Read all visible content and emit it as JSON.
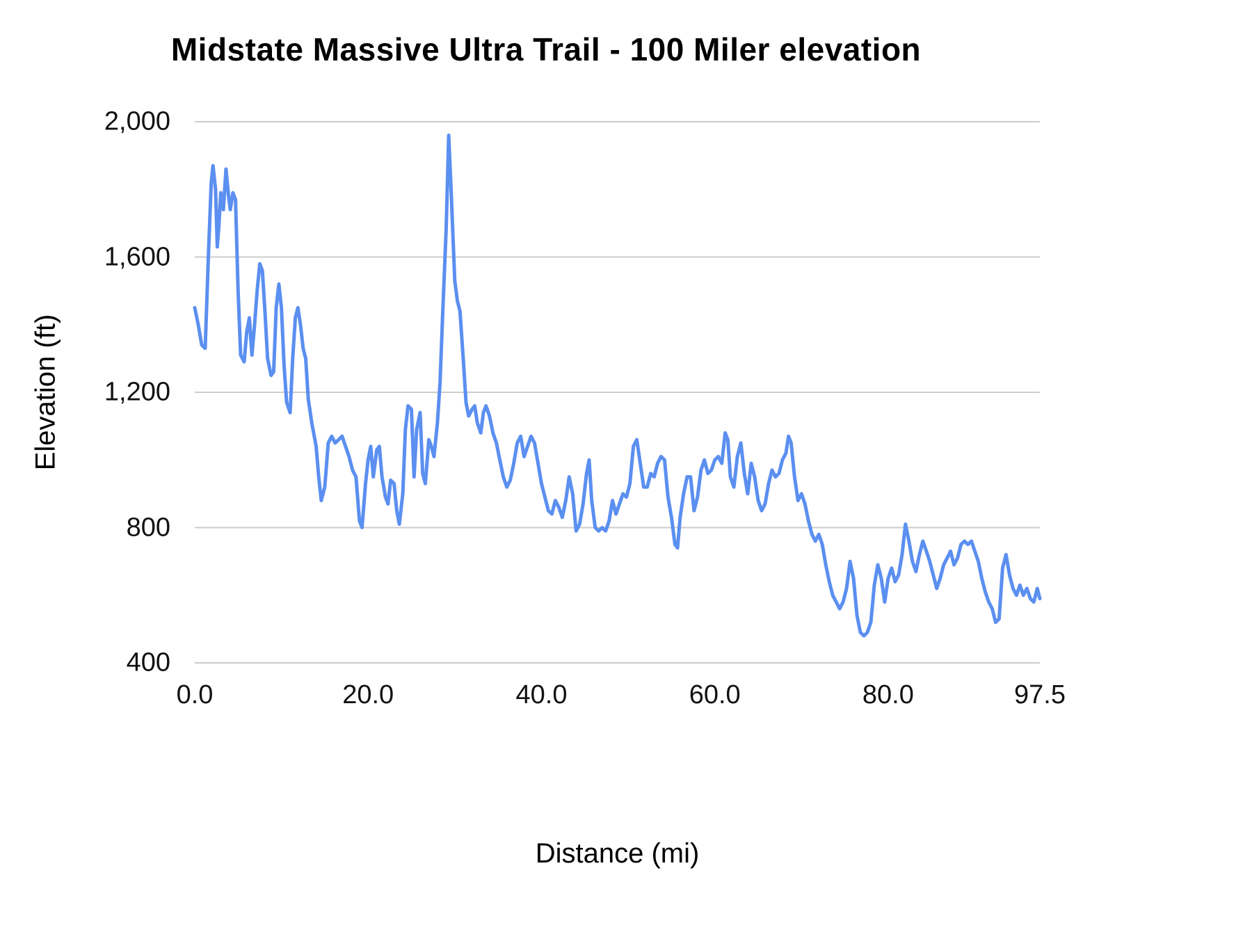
{
  "chart_data": {
    "type": "line",
    "title": "Midstate Massive Ultra Trail - 100 Miler elevation",
    "xlabel": "Distance (mi)",
    "ylabel": "Elevation (ft)",
    "xlim": [
      0,
      97.5
    ],
    "ylim": [
      400,
      2000
    ],
    "grid": "horizontal",
    "legend": "none",
    "line_color": "#5b8ff0",
    "gridline_color": "#cccccc",
    "text_color": "#111111",
    "x_ticks": [
      {
        "value": 0,
        "label": "0.0"
      },
      {
        "value": 20,
        "label": "20.0"
      },
      {
        "value": 40,
        "label": "40.0"
      },
      {
        "value": 60,
        "label": "60.0"
      },
      {
        "value": 80,
        "label": "80.0"
      },
      {
        "value": 97.5,
        "label": "97.5"
      }
    ],
    "y_ticks": [
      {
        "value": 2000,
        "label": "2,000"
      },
      {
        "value": 1600,
        "label": "1,600"
      },
      {
        "value": 1200,
        "label": "1,200"
      },
      {
        "value": 800,
        "label": "800"
      },
      {
        "value": 400,
        "label": "400"
      }
    ],
    "series_name": "elevation",
    "points": [
      [
        0,
        1450
      ],
      [
        0.4,
        1400
      ],
      [
        0.8,
        1340
      ],
      [
        1.2,
        1330
      ],
      [
        1.6,
        1620
      ],
      [
        1.9,
        1820
      ],
      [
        2.1,
        1870
      ],
      [
        2.4,
        1800
      ],
      [
        2.6,
        1630
      ],
      [
        2.8,
        1700
      ],
      [
        3.0,
        1790
      ],
      [
        3.3,
        1740
      ],
      [
        3.6,
        1860
      ],
      [
        3.9,
        1780
      ],
      [
        4.1,
        1740
      ],
      [
        4.4,
        1790
      ],
      [
        4.7,
        1770
      ],
      [
        5.0,
        1500
      ],
      [
        5.3,
        1310
      ],
      [
        5.7,
        1290
      ],
      [
        6.0,
        1380
      ],
      [
        6.3,
        1420
      ],
      [
        6.6,
        1310
      ],
      [
        6.9,
        1400
      ],
      [
        7.2,
        1500
      ],
      [
        7.5,
        1580
      ],
      [
        7.8,
        1560
      ],
      [
        8.1,
        1440
      ],
      [
        8.4,
        1300
      ],
      [
        8.8,
        1250
      ],
      [
        9.1,
        1260
      ],
      [
        9.4,
        1450
      ],
      [
        9.7,
        1520
      ],
      [
        10.0,
        1450
      ],
      [
        10.3,
        1280
      ],
      [
        10.6,
        1170
      ],
      [
        11.0,
        1140
      ],
      [
        11.3,
        1300
      ],
      [
        11.6,
        1420
      ],
      [
        11.9,
        1450
      ],
      [
        12.2,
        1400
      ],
      [
        12.5,
        1330
      ],
      [
        12.8,
        1300
      ],
      [
        13.1,
        1180
      ],
      [
        13.5,
        1110
      ],
      [
        14.0,
        1040
      ],
      [
        14.3,
        950
      ],
      [
        14.6,
        880
      ],
      [
        15.0,
        920
      ],
      [
        15.4,
        1050
      ],
      [
        15.8,
        1070
      ],
      [
        16.2,
        1050
      ],
      [
        16.6,
        1060
      ],
      [
        17.0,
        1070
      ],
      [
        17.4,
        1040
      ],
      [
        17.8,
        1010
      ],
      [
        18.2,
        970
      ],
      [
        18.6,
        950
      ],
      [
        19.0,
        820
      ],
      [
        19.3,
        800
      ],
      [
        19.7,
        930
      ],
      [
        20.0,
        1000
      ],
      [
        20.3,
        1040
      ],
      [
        20.6,
        950
      ],
      [
        21.0,
        1030
      ],
      [
        21.3,
        1040
      ],
      [
        21.6,
        950
      ],
      [
        22.0,
        890
      ],
      [
        22.3,
        870
      ],
      [
        22.6,
        940
      ],
      [
        23.0,
        930
      ],
      [
        23.3,
        850
      ],
      [
        23.6,
        810
      ],
      [
        24.0,
        900
      ],
      [
        24.3,
        1090
      ],
      [
        24.6,
        1160
      ],
      [
        25.0,
        1150
      ],
      [
        25.3,
        950
      ],
      [
        25.6,
        1090
      ],
      [
        26.0,
        1140
      ],
      [
        26.3,
        960
      ],
      [
        26.6,
        930
      ],
      [
        27.0,
        1060
      ],
      [
        27.3,
        1040
      ],
      [
        27.6,
        1010
      ],
      [
        28.0,
        1110
      ],
      [
        28.3,
        1230
      ],
      [
        28.6,
        1430
      ],
      [
        29.0,
        1680
      ],
      [
        29.3,
        1960
      ],
      [
        29.6,
        1780
      ],
      [
        30.0,
        1530
      ],
      [
        30.3,
        1470
      ],
      [
        30.6,
        1440
      ],
      [
        31.0,
        1290
      ],
      [
        31.3,
        1170
      ],
      [
        31.6,
        1130
      ],
      [
        32.0,
        1150
      ],
      [
        32.3,
        1160
      ],
      [
        32.6,
        1110
      ],
      [
        33.0,
        1080
      ],
      [
        33.3,
        1140
      ],
      [
        33.6,
        1160
      ],
      [
        34.0,
        1130
      ],
      [
        34.4,
        1080
      ],
      [
        34.8,
        1050
      ],
      [
        35.2,
        1000
      ],
      [
        35.6,
        950
      ],
      [
        36.0,
        920
      ],
      [
        36.4,
        940
      ],
      [
        36.8,
        990
      ],
      [
        37.2,
        1050
      ],
      [
        37.6,
        1070
      ],
      [
        38.0,
        1010
      ],
      [
        38.4,
        1040
      ],
      [
        38.8,
        1070
      ],
      [
        39.2,
        1050
      ],
      [
        39.6,
        990
      ],
      [
        40.0,
        930
      ],
      [
        40.4,
        890
      ],
      [
        40.8,
        850
      ],
      [
        41.2,
        840
      ],
      [
        41.6,
        880
      ],
      [
        42.0,
        860
      ],
      [
        42.4,
        830
      ],
      [
        42.8,
        880
      ],
      [
        43.2,
        950
      ],
      [
        43.6,
        900
      ],
      [
        44.0,
        790
      ],
      [
        44.4,
        810
      ],
      [
        44.8,
        870
      ],
      [
        45.2,
        960
      ],
      [
        45.5,
        1000
      ],
      [
        45.8,
        880
      ],
      [
        46.2,
        800
      ],
      [
        46.6,
        790
      ],
      [
        47.0,
        800
      ],
      [
        47.4,
        790
      ],
      [
        47.8,
        820
      ],
      [
        48.2,
        880
      ],
      [
        48.6,
        840
      ],
      [
        49.0,
        870
      ],
      [
        49.4,
        900
      ],
      [
        49.8,
        890
      ],
      [
        50.2,
        930
      ],
      [
        50.6,
        1040
      ],
      [
        51.0,
        1060
      ],
      [
        51.4,
        990
      ],
      [
        51.8,
        920
      ],
      [
        52.2,
        920
      ],
      [
        52.6,
        960
      ],
      [
        53.0,
        950
      ],
      [
        53.4,
        990
      ],
      [
        53.8,
        1010
      ],
      [
        54.2,
        1000
      ],
      [
        54.6,
        890
      ],
      [
        55.0,
        830
      ],
      [
        55.4,
        750
      ],
      [
        55.7,
        740
      ],
      [
        56.0,
        830
      ],
      [
        56.4,
        900
      ],
      [
        56.8,
        950
      ],
      [
        57.2,
        950
      ],
      [
        57.6,
        850
      ],
      [
        58.0,
        890
      ],
      [
        58.4,
        970
      ],
      [
        58.8,
        1000
      ],
      [
        59.2,
        960
      ],
      [
        59.6,
        970
      ],
      [
        60.0,
        1000
      ],
      [
        60.4,
        1010
      ],
      [
        60.8,
        990
      ],
      [
        61.2,
        1080
      ],
      [
        61.5,
        1060
      ],
      [
        61.8,
        950
      ],
      [
        62.2,
        920
      ],
      [
        62.6,
        1010
      ],
      [
        63.0,
        1050
      ],
      [
        63.4,
        960
      ],
      [
        63.8,
        900
      ],
      [
        64.2,
        990
      ],
      [
        64.6,
        950
      ],
      [
        65.0,
        880
      ],
      [
        65.4,
        850
      ],
      [
        65.8,
        870
      ],
      [
        66.2,
        930
      ],
      [
        66.6,
        970
      ],
      [
        67.0,
        950
      ],
      [
        67.4,
        960
      ],
      [
        67.8,
        1000
      ],
      [
        68.2,
        1020
      ],
      [
        68.5,
        1070
      ],
      [
        68.8,
        1050
      ],
      [
        69.2,
        950
      ],
      [
        69.6,
        880
      ],
      [
        70.0,
        900
      ],
      [
        70.4,
        870
      ],
      [
        70.8,
        820
      ],
      [
        71.2,
        780
      ],
      [
        71.6,
        760
      ],
      [
        72.0,
        780
      ],
      [
        72.4,
        750
      ],
      [
        72.8,
        690
      ],
      [
        73.2,
        640
      ],
      [
        73.6,
        600
      ],
      [
        74.0,
        580
      ],
      [
        74.4,
        560
      ],
      [
        74.8,
        580
      ],
      [
        75.2,
        620
      ],
      [
        75.6,
        700
      ],
      [
        76.0,
        650
      ],
      [
        76.4,
        540
      ],
      [
        76.8,
        490
      ],
      [
        77.2,
        480
      ],
      [
        77.6,
        490
      ],
      [
        78.0,
        520
      ],
      [
        78.4,
        630
      ],
      [
        78.8,
        690
      ],
      [
        79.2,
        650
      ],
      [
        79.6,
        580
      ],
      [
        80.0,
        650
      ],
      [
        80.4,
        680
      ],
      [
        80.8,
        640
      ],
      [
        81.2,
        660
      ],
      [
        81.6,
        720
      ],
      [
        82.0,
        810
      ],
      [
        82.4,
        760
      ],
      [
        82.8,
        700
      ],
      [
        83.2,
        670
      ],
      [
        83.6,
        720
      ],
      [
        84.0,
        760
      ],
      [
        84.4,
        730
      ],
      [
        84.8,
        700
      ],
      [
        85.2,
        660
      ],
      [
        85.6,
        620
      ],
      [
        86.0,
        650
      ],
      [
        86.4,
        690
      ],
      [
        86.8,
        710
      ],
      [
        87.2,
        730
      ],
      [
        87.6,
        690
      ],
      [
        88.0,
        710
      ],
      [
        88.4,
        750
      ],
      [
        88.8,
        760
      ],
      [
        89.2,
        750
      ],
      [
        89.6,
        760
      ],
      [
        90.0,
        730
      ],
      [
        90.4,
        700
      ],
      [
        90.8,
        650
      ],
      [
        91.2,
        610
      ],
      [
        91.6,
        580
      ],
      [
        92.0,
        560
      ],
      [
        92.4,
        520
      ],
      [
        92.8,
        530
      ],
      [
        93.2,
        680
      ],
      [
        93.6,
        720
      ],
      [
        94.0,
        660
      ],
      [
        94.4,
        620
      ],
      [
        94.8,
        600
      ],
      [
        95.2,
        630
      ],
      [
        95.6,
        600
      ],
      [
        96.0,
        620
      ],
      [
        96.4,
        590
      ],
      [
        96.8,
        580
      ],
      [
        97.2,
        620
      ],
      [
        97.5,
        590
      ]
    ]
  }
}
